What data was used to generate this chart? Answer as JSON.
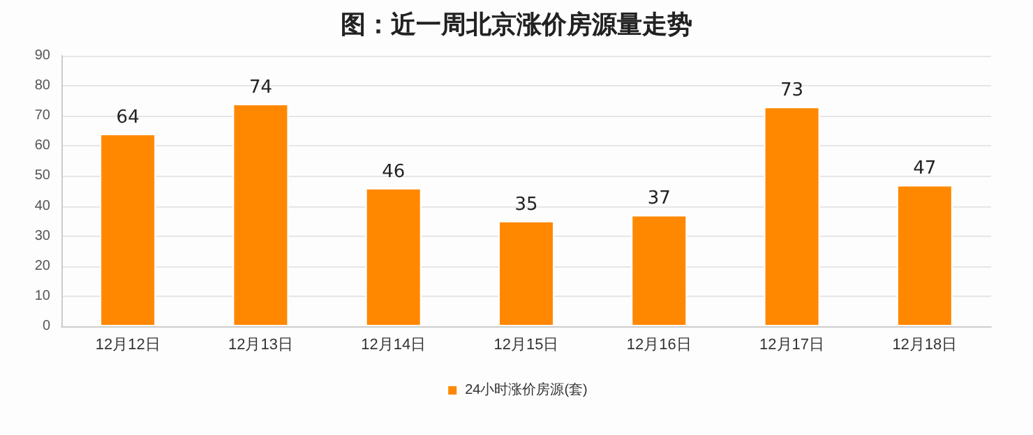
{
  "chart_data": {
    "type": "bar",
    "title": "图：近一周北京涨价房源量走势",
    "categories": [
      "12月12日",
      "12月13日",
      "12月14日",
      "12月15日",
      "12月16日",
      "12月17日",
      "12月18日"
    ],
    "series": [
      {
        "name": "24小时涨价房源(套)",
        "color": "#ff8800",
        "values": [
          64,
          74,
          46,
          35,
          37,
          73,
          47
        ]
      }
    ],
    "ylim": [
      0,
      90
    ],
    "yticks": [
      0,
      10,
      20,
      30,
      40,
      50,
      60,
      70,
      80,
      90
    ],
    "grid": "y",
    "legend": "bottom",
    "data_labels": true
  }
}
